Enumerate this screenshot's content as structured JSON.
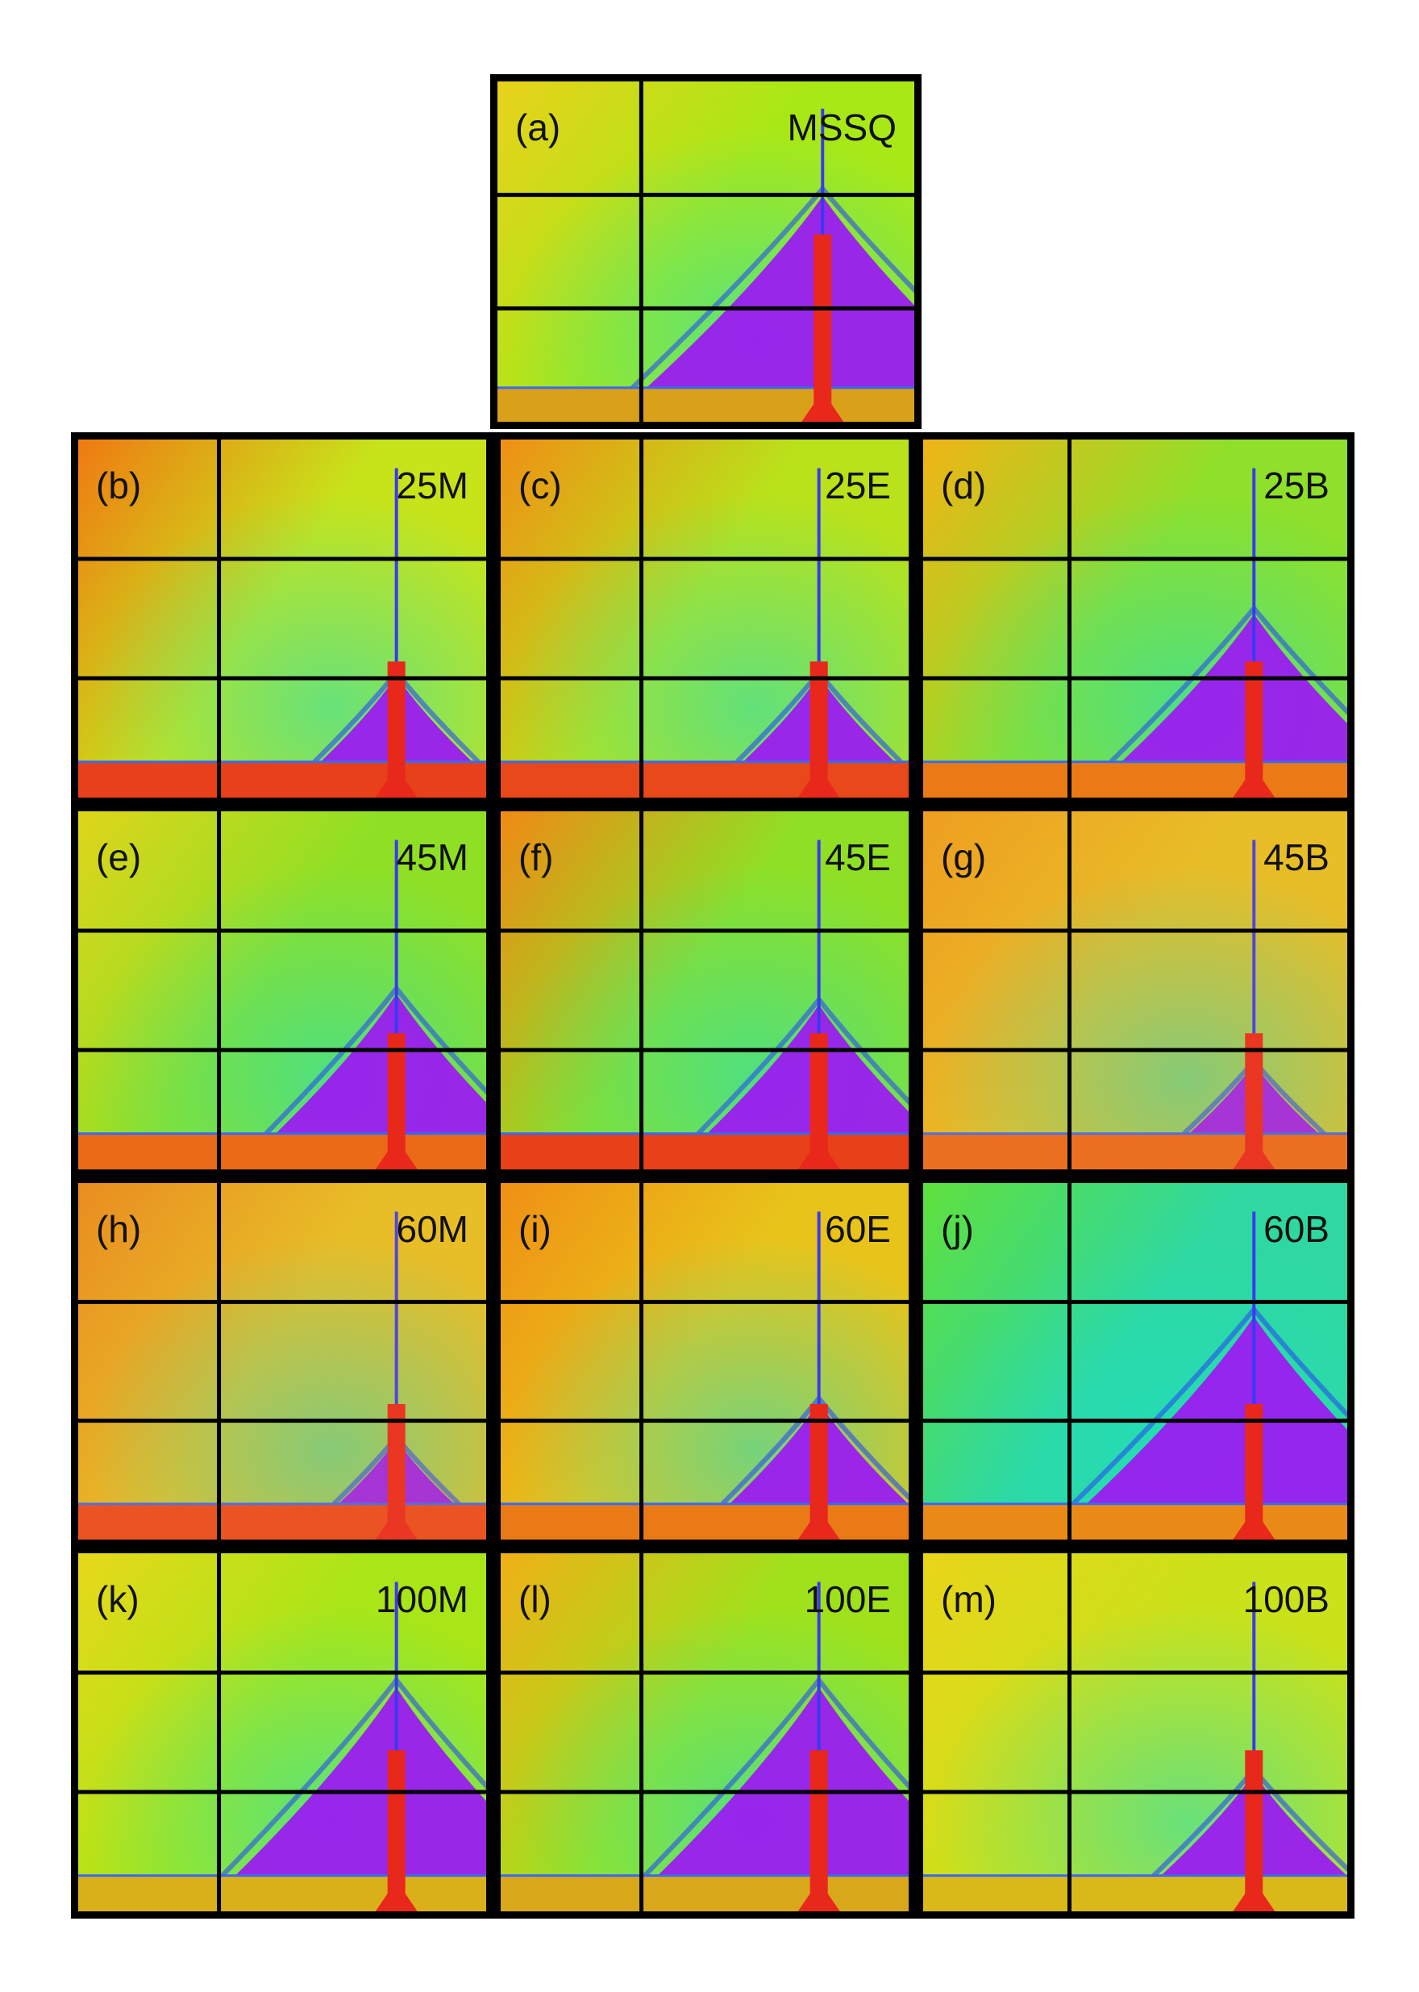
{
  "figure": {
    "panels": [
      {
        "letter": "(a)",
        "code": "MSSQ",
        "top": "#e9d21a",
        "mid": "#a8e817",
        "plume": 0.55,
        "stem": 0.45,
        "substrate": "#d9a01a",
        "speckle": false
      },
      {
        "letter": "(b)",
        "code": "25M",
        "top": "#f07a12",
        "mid": "#c7e41a",
        "plume": 0.12,
        "stem": 0.62,
        "substrate": "#e8401a",
        "speckle": false
      },
      {
        "letter": "(c)",
        "code": "25E",
        "top": "#f09014",
        "mid": "#b9e21a",
        "plume": 0.12,
        "stem": 0.62,
        "substrate": "#e8481a",
        "speckle": false
      },
      {
        "letter": "(d)",
        "code": "25B",
        "top": "#f0b416",
        "mid": "#8ee02a",
        "plume": 0.35,
        "stem": 0.62,
        "substrate": "#ea7a16",
        "speckle": false
      },
      {
        "letter": "(e)",
        "code": "45M",
        "top": "#dfd51a",
        "mid": "#8fe025",
        "plume": 0.32,
        "stem": 0.62,
        "substrate": "#ea6a18",
        "speckle": false
      },
      {
        "letter": "(f)",
        "code": "45E",
        "top": "#f08a14",
        "mid": "#8fe025",
        "plume": 0.28,
        "stem": 0.62,
        "substrate": "#e84018",
        "speckle": false
      },
      {
        "letter": "(g)",
        "code": "45B",
        "top": "#eea018",
        "mid": "#e6c420",
        "plume": 0.06,
        "stem": 0.62,
        "substrate": "#ea6a18",
        "speckle": true
      },
      {
        "letter": "(h)",
        "code": "60M",
        "top": "#e88c18",
        "mid": "#e6c420",
        "plume": 0.04,
        "stem": 0.62,
        "substrate": "#e84a1a",
        "speckle": true
      },
      {
        "letter": "(i)",
        "code": "60E",
        "top": "#f09014",
        "mid": "#e8c41a",
        "plume": 0.18,
        "stem": 0.62,
        "substrate": "#ea7a16",
        "speckle": false
      },
      {
        "letter": "(j)",
        "code": "60B",
        "top": "#5fe03c",
        "mid": "#2fd8a0",
        "plume": 0.5,
        "stem": 0.62,
        "substrate": "#ea8a16",
        "speckle": false
      },
      {
        "letter": "(k)",
        "code": "100M",
        "top": "#e7d81a",
        "mid": "#a8e617",
        "plume": 0.5,
        "stem": 0.55,
        "substrate": "#d9b01a",
        "speckle": false
      },
      {
        "letter": "(l)",
        "code": "100E",
        "top": "#f0b016",
        "mid": "#9fe21c",
        "plume": 0.5,
        "stem": 0.55,
        "substrate": "#d8a81a",
        "speckle": false
      },
      {
        "letter": "(m)",
        "code": "100B",
        "top": "#e9d51a",
        "mid": "#c9e21a",
        "plume": 0.18,
        "stem": 0.55,
        "substrate": "#d9b81a",
        "speckle": false
      }
    ]
  }
}
